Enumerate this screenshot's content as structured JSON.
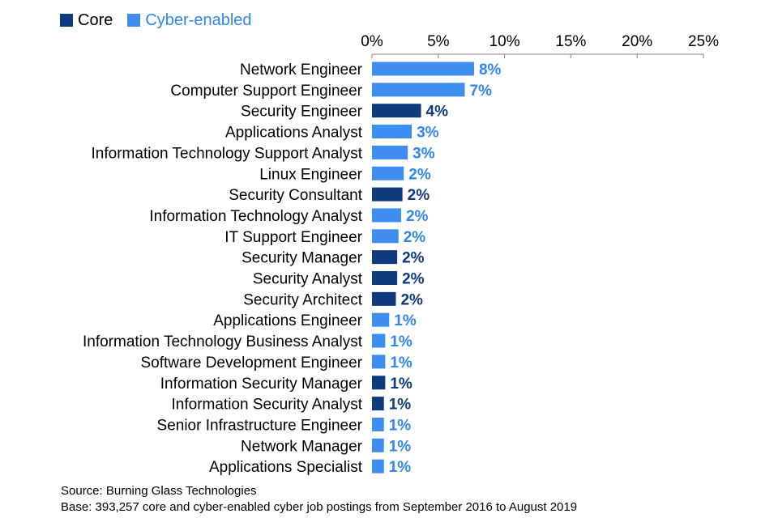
{
  "chart_data": {
    "type": "bar",
    "orientation": "horizontal",
    "legend": [
      {
        "name": "Core",
        "color": "#0e3a7e"
      },
      {
        "name": "Cyber-enabled",
        "color": "#3d8ef0"
      }
    ],
    "label_colors": {
      "Core": "#0e3a7e",
      "Cyber-enabled": "#2e86ef"
    },
    "xlim": [
      0,
      25
    ],
    "x_ticks": [
      0,
      5,
      10,
      15,
      20,
      25
    ],
    "x_tick_labels": [
      "0%",
      "5%",
      "10%",
      "15%",
      "20%",
      "25%"
    ],
    "bars": [
      {
        "category": "Network Engineer",
        "value": 7.7,
        "label": "8%",
        "series": "Cyber-enabled"
      },
      {
        "category": "Computer Support Engineer",
        "value": 7.0,
        "label": "7%",
        "series": "Cyber-enabled"
      },
      {
        "category": "Security Engineer",
        "value": 3.7,
        "label": "4%",
        "series": "Core"
      },
      {
        "category": "Applications Analyst",
        "value": 3.0,
        "label": "3%",
        "series": "Cyber-enabled"
      },
      {
        "category": "Information Technology Support Analyst",
        "value": 2.7,
        "label": "3%",
        "series": "Cyber-enabled"
      },
      {
        "category": "Linux Engineer",
        "value": 2.4,
        "label": "2%",
        "series": "Cyber-enabled"
      },
      {
        "category": "Security Consultant",
        "value": 2.3,
        "label": "2%",
        "series": "Core"
      },
      {
        "category": "Information Technology Analyst",
        "value": 2.2,
        "label": "2%",
        "series": "Cyber-enabled"
      },
      {
        "category": "IT Support Engineer",
        "value": 2.0,
        "label": "2%",
        "series": "Cyber-enabled"
      },
      {
        "category": "Security Manager",
        "value": 1.9,
        "label": "2%",
        "series": "Core"
      },
      {
        "category": "Security Analyst",
        "value": 1.9,
        "label": "2%",
        "series": "Core"
      },
      {
        "category": "Security Architect",
        "value": 1.8,
        "label": "2%",
        "series": "Core"
      },
      {
        "category": "Applications Engineer",
        "value": 1.3,
        "label": "1%",
        "series": "Cyber-enabled"
      },
      {
        "category": "Information Technology Business Analyst",
        "value": 1.0,
        "label": "1%",
        "series": "Cyber-enabled"
      },
      {
        "category": "Software Development Engineer",
        "value": 1.0,
        "label": "1%",
        "series": "Cyber-enabled"
      },
      {
        "category": "Information Security Manager",
        "value": 1.0,
        "label": "1%",
        "series": "Core"
      },
      {
        "category": "Information Security Analyst",
        "value": 0.9,
        "label": "1%",
        "series": "Core"
      },
      {
        "category": "Senior Infrastructure Engineer",
        "value": 0.9,
        "label": "1%",
        "series": "Cyber-enabled"
      },
      {
        "category": "Network Manager",
        "value": 0.9,
        "label": "1%",
        "series": "Cyber-enabled"
      },
      {
        "category": "Applications Specialist",
        "value": 0.9,
        "label": "1%",
        "series": "Cyber-enabled"
      }
    ]
  },
  "notes": {
    "source": "Source: Burning Glass Technologies",
    "base": "Base: 393,257 core and cyber-enabled cyber job postings from September 2016 to August 2019"
  }
}
